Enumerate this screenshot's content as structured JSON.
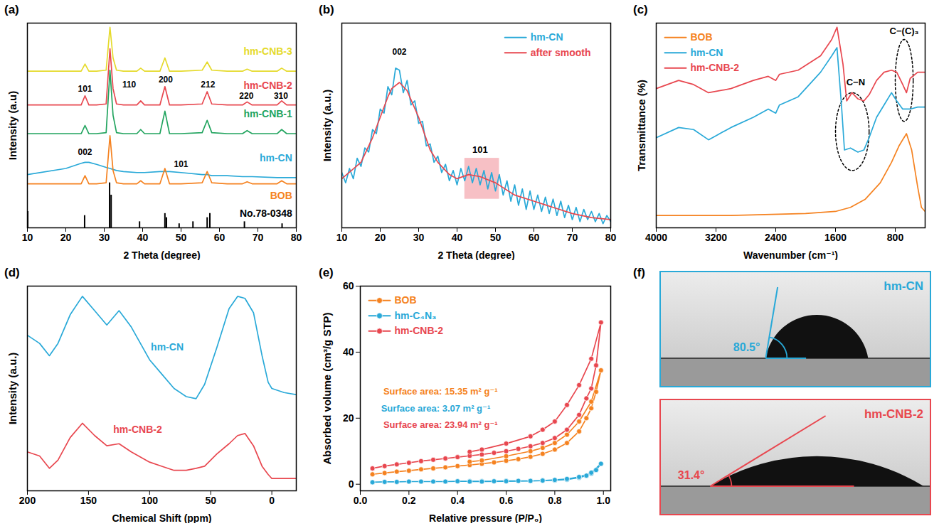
{
  "chart_data": [
    {
      "panel": "(a)",
      "type": "line",
      "x_label": "2 Theta (degree)",
      "y_label": "Intensity (a.u)",
      "xlim": [
        10,
        80
      ],
      "xticks": [
        10,
        20,
        30,
        40,
        50,
        60,
        70,
        80
      ],
      "ylim": [
        0,
        100
      ],
      "tick_labels": "x",
      "legend": "inline",
      "x": [
        10,
        20,
        24,
        25,
        26,
        28,
        30.5,
        31.5,
        32.3,
        33.2,
        35,
        38.5,
        39.5,
        40.5,
        44.5,
        45.8,
        47,
        50,
        55.5,
        56.8,
        58,
        62,
        66,
        67.2,
        68.5,
        75,
        76.2,
        77.5,
        80
      ],
      "series": [
        {
          "name": "hm-CNB-3",
          "color": "#e5da2a",
          "values": [
            76.5,
            76.5,
            76.5,
            80,
            76.5,
            76.5,
            77,
            98,
            83,
            77,
            76.5,
            76.5,
            78,
            76.5,
            76.5,
            83,
            76.5,
            76.5,
            77,
            81,
            77,
            76.5,
            76.5,
            77.5,
            76.5,
            76.5,
            78,
            76.5,
            76.5
          ]
        },
        {
          "name": "hm-CNB-2",
          "color": "#e8474f",
          "values": [
            60,
            60,
            60,
            64.5,
            60,
            60,
            60.5,
            87.5,
            68,
            60.5,
            60,
            60,
            62,
            60,
            60,
            69,
            60,
            60,
            60.5,
            66.5,
            60.5,
            60,
            60,
            61.5,
            60,
            60,
            62,
            60,
            60
          ]
        },
        {
          "name": "hm-CNB-1",
          "color": "#22a45f",
          "values": [
            46,
            46,
            46,
            50,
            46,
            46,
            46.5,
            77,
            55,
            46.5,
            46,
            46,
            48,
            46,
            46,
            57,
            46,
            46,
            46.5,
            52.5,
            46.5,
            46,
            46,
            47.5,
            46,
            46,
            48,
            46,
            46
          ]
        },
        {
          "name": "hm-CN",
          "color": "#29a9d8",
          "values": [
            26,
            29,
            31.5,
            32,
            32,
            31,
            29.5,
            29,
            28.5,
            28,
            27.5,
            27,
            27,
            27,
            27.5,
            27.5,
            27.5,
            27,
            26,
            26,
            25.5,
            25.5,
            25,
            25,
            25,
            24.5,
            24.5,
            24.5,
            24.5
          ]
        },
        {
          "name": "BOB",
          "color": "#f58220",
          "values": [
            21.5,
            21.5,
            21.5,
            25.5,
            21.5,
            21.5,
            22,
            45,
            28,
            22,
            21.5,
            21.5,
            23,
            21.5,
            21.5,
            29,
            21.5,
            21.5,
            22,
            27.5,
            22,
            21.5,
            21.5,
            22.5,
            21.5,
            21.5,
            23,
            21.5,
            21.5
          ]
        },
        {
          "name": "No.78-0348",
          "type": "stick",
          "color": "#000000",
          "x": [
            10.1,
            24.9,
            31.4,
            31.8,
            39.2,
            45.8,
            46.2,
            49.5,
            53.1,
            56.8,
            57.5,
            66.5,
            76.3
          ],
          "values": [
            8,
            6,
            22,
            16,
            3,
            7,
            5,
            2,
            3,
            5,
            7,
            3,
            2
          ]
        }
      ],
      "annotations": [
        {
          "text": "101",
          "x": 25,
          "y": 68
        },
        {
          "text": "110",
          "x": 36.5,
          "y": 70
        },
        {
          "text": "200",
          "x": 46,
          "y": 72.5
        },
        {
          "text": "212",
          "x": 57,
          "y": 70
        },
        {
          "text": "220",
          "x": 67,
          "y": 64.5
        },
        {
          "text": "310",
          "x": 76,
          "y": 64.5
        },
        {
          "text": "002",
          "x": 25,
          "y": 37
        },
        {
          "text": "101",
          "x": 50,
          "y": 31
        }
      ]
    },
    {
      "panel": "(b)",
      "type": "line",
      "x_label": "2 Theta (degree)",
      "y_label": "Intensity (a.u.)",
      "xlim": [
        10,
        80
      ],
      "xticks": [
        10,
        20,
        30,
        40,
        50,
        60,
        70,
        80
      ],
      "ylim": [
        0,
        100
      ],
      "tick_labels": "x",
      "legend": "top-right",
      "series": [
        {
          "name": "hm-CN",
          "color": "#29a9d8",
          "x": [
            10,
            11,
            12,
            13,
            14,
            15,
            16,
            17,
            18,
            19,
            20,
            21,
            22,
            23,
            24,
            25,
            26,
            27,
            28,
            29,
            30,
            31,
            32,
            33,
            34,
            35,
            36,
            37,
            38,
            39,
            40,
            41,
            42,
            43,
            44,
            45,
            46,
            47,
            48,
            49,
            50,
            51,
            52,
            53,
            54,
            55,
            56,
            57,
            58,
            59,
            60,
            61,
            62,
            63,
            64,
            65,
            66,
            67,
            68,
            69,
            70,
            71,
            72,
            73,
            74,
            75,
            76,
            77,
            78,
            79,
            80
          ],
          "values": [
            27,
            22,
            29,
            24,
            34,
            30,
            39,
            37,
            48,
            46,
            58,
            56,
            69,
            65,
            78,
            77,
            66,
            72,
            60,
            62,
            51,
            52,
            40,
            41,
            32,
            35,
            27,
            31,
            23,
            28,
            21,
            29,
            23,
            30,
            22,
            29,
            21,
            28,
            19,
            27,
            18,
            26,
            16,
            23,
            13,
            21,
            11,
            19,
            9,
            18,
            9,
            16,
            8,
            15,
            7,
            14,
            6,
            13,
            5,
            11,
            4,
            10,
            3,
            9,
            4,
            8,
            3,
            7,
            2,
            6,
            3
          ]
        },
        {
          "name": "after smooth",
          "color": "#e8474f",
          "x": [
            10,
            15,
            18,
            20,
            22,
            23,
            25,
            27,
            30,
            33,
            35,
            38,
            40,
            43,
            46,
            50,
            55,
            60,
            65,
            70,
            75,
            80
          ],
          "values": [
            24,
            32,
            44,
            54,
            64,
            68,
            71,
            67,
            54,
            38,
            32,
            26,
            24,
            26,
            25,
            22,
            16,
            13,
            10,
            7,
            5,
            4
          ]
        }
      ],
      "annotations": [
        {
          "text": "002",
          "x": 25,
          "y": 86
        },
        {
          "text": "101",
          "x": 46,
          "y": 38,
          "shape": "rect",
          "x_range": [
            42,
            51
          ],
          "y_range": [
            14,
            34
          ],
          "color": "#f08c96"
        }
      ]
    },
    {
      "panel": "(c)",
      "type": "line",
      "x_label": "Wavenumber (cm⁻¹)",
      "y_label": "Transmittance (%)",
      "xlim": [
        4000,
        400
      ],
      "xticks": [
        4000,
        3200,
        2400,
        1600,
        800
      ],
      "ylim": [
        0,
        100
      ],
      "tick_labels": "x",
      "legend": "top-left",
      "series": [
        {
          "name": "BOB",
          "color": "#f58220",
          "x": [
            4000,
            3000,
            2000,
            1600,
            1400,
            1200,
            1000,
            850,
            750,
            650,
            580,
            500,
            450,
            400
          ],
          "values": [
            6,
            6,
            7,
            8,
            10,
            14,
            22,
            32,
            40,
            46,
            38,
            20,
            10,
            8
          ]
        },
        {
          "name": "hm-CN",
          "color": "#29a9d8",
          "x": [
            4000,
            3700,
            3500,
            3300,
            3200,
            3000,
            2700,
            2500,
            2400,
            2350,
            2100,
            1800,
            1650,
            1580,
            1520,
            1480,
            1400,
            1300,
            1220,
            1150,
            1050,
            950,
            850,
            780,
            700,
            600,
            500,
            400
          ],
          "values": [
            44,
            49,
            48,
            43,
            45,
            49,
            54,
            58,
            56,
            60,
            64,
            76,
            84,
            88,
            60,
            38,
            39,
            37,
            38,
            44,
            54,
            60,
            66,
            62,
            58,
            58,
            59,
            59
          ]
        },
        {
          "name": "hm-CNB-2",
          "color": "#e8474f",
          "x": [
            4000,
            3700,
            3500,
            3300,
            3000,
            2700,
            2500,
            2400,
            2350,
            2100,
            1800,
            1650,
            1580,
            1500,
            1450,
            1380,
            1300,
            1220,
            1150,
            1050,
            950,
            850,
            780,
            700,
            650,
            600,
            500,
            400
          ],
          "values": [
            68,
            72,
            70,
            66,
            68,
            72,
            74,
            72,
            75,
            77,
            84,
            92,
            98,
            80,
            62,
            66,
            63,
            62,
            65,
            72,
            76,
            77,
            76,
            70,
            66,
            73,
            76,
            76
          ]
        }
      ],
      "annotations": [
        {
          "text": "C−N",
          "x": 1330,
          "y": 71,
          "shape": "ellipse",
          "x_range": [
            1600,
            1150
          ],
          "y_range": [
            28,
            66
          ],
          "color": "#000000"
        },
        {
          "text": "C−(C)₃",
          "x": 680,
          "y": 96,
          "shape": "ellipse",
          "x_range": [
            800,
            560
          ],
          "y_range": [
            52,
            92
          ],
          "color": "#000000"
        }
      ]
    },
    {
      "panel": "(d)",
      "type": "line",
      "x_label": "Chemical Shift (ppm)",
      "y_label": "Intensity (a.u.)",
      "xlim": [
        200,
        -20
      ],
      "xticks": [
        200,
        150,
        100,
        50,
        0
      ],
      "ylim": [
        0,
        100
      ],
      "tick_labels": "x",
      "legend": "inline",
      "x": [
        200,
        190,
        182,
        175,
        165,
        155,
        145,
        135,
        125,
        115,
        100,
        90,
        80,
        70,
        62,
        55,
        45,
        35,
        28,
        22,
        15,
        8,
        3,
        0,
        -10,
        -20
      ],
      "series": [
        {
          "name": "hm-CN",
          "color": "#29a9d8",
          "values": [
            76,
            72,
            66,
            72,
            86,
            95,
            88,
            81,
            88,
            80,
            64,
            57,
            50,
            46,
            45,
            52,
            70,
            89,
            95,
            94,
            87,
            66,
            53,
            50,
            48,
            47
          ]
        },
        {
          "name": "hm-CNB-2",
          "color": "#e8474f",
          "values": [
            19,
            17,
            11,
            15,
            26,
            33,
            27,
            22,
            23,
            19,
            14,
            12,
            10,
            10,
            11,
            12,
            18,
            23,
            27,
            28,
            22,
            12,
            8,
            6,
            6,
            6
          ]
        }
      ]
    },
    {
      "panel": "(e)",
      "type": "line",
      "marker": "circle",
      "x_label": "Relative pressure (P/P₀)",
      "y_label": "Absorbed volume (cm³/g STP)",
      "xlim": [
        0,
        1.03
      ],
      "xticks": [
        {
          "value": 0,
          "label": "0.0"
        },
        0.2,
        0.4,
        0.6,
        0.8,
        {
          "value": 1,
          "label": "1.0"
        }
      ],
      "ylim": [
        -2,
        60
      ],
      "yticks": [
        0,
        20,
        40,
        60
      ],
      "legend": "top-left",
      "x": [
        0.05,
        0.1,
        0.15,
        0.2,
        0.25,
        0.3,
        0.35,
        0.4,
        0.45,
        0.5,
        0.55,
        0.6,
        0.65,
        0.7,
        0.75,
        0.8,
        0.85,
        0.9,
        0.93,
        0.95,
        0.97,
        0.99,
        0.95,
        0.9,
        0.85,
        0.8,
        0.75,
        0.7,
        0.6,
        0.5,
        0.45
      ],
      "series": [
        {
          "name": "BOB",
          "color": "#f58220",
          "values": [
            3.0,
            3.4,
            3.8,
            4.1,
            4.5,
            4.8,
            5.1,
            5.5,
            5.8,
            6.2,
            6.6,
            7.1,
            7.6,
            8.3,
            9.2,
            10.5,
            12.5,
            16,
            20,
            23,
            28,
            34.5,
            25,
            19,
            15,
            12.5,
            11,
            10,
            8.5,
            7.2,
            6.8
          ]
        },
        {
          "name": "hm-C₄N₃",
          "color": "#29a9d8",
          "values": [
            0.6,
            0.7,
            0.7,
            0.8,
            0.8,
            0.8,
            0.8,
            0.9,
            0.9,
            0.9,
            0.9,
            1.0,
            1.0,
            1.0,
            1.1,
            1.2,
            1.4,
            2.0,
            2.6,
            3.2,
            4.3,
            6.2,
            3.5,
            2.2,
            1.6,
            1.3,
            1.1,
            1.0,
            0.9,
            0.8,
            0.8
          ]
        },
        {
          "name": "hm-CNB-2",
          "color": "#e8474f",
          "values": [
            4.8,
            5.5,
            6.0,
            6.5,
            7.0,
            7.4,
            7.8,
            8.2,
            8.6,
            9.0,
            9.5,
            10.0,
            10.7,
            11.5,
            12.5,
            14.0,
            16.5,
            21,
            26,
            29,
            36,
            49,
            38,
            30,
            24,
            19,
            16.5,
            14.5,
            12.3,
            10.5,
            9.8
          ]
        }
      ],
      "annotations": [
        {
          "text": "Surface area: 15.35 m² g⁻¹",
          "x": 0.33,
          "y": 28,
          "color": "#f58220"
        },
        {
          "text": "Surface area: 3.07 m² g⁻¹",
          "x": 0.31,
          "y": 23,
          "color": "#29a9d8"
        },
        {
          "text": "Surface area: 23.94 m² g⁻¹",
          "x": 0.33,
          "y": 18,
          "color": "#e8474f"
        }
      ]
    }
  ],
  "photos": {
    "panel": "(f)",
    "items": [
      {
        "label": "hm-CN",
        "angle": 80.5,
        "angle_label": "80.5°",
        "color": "#29a9d8"
      },
      {
        "label": "hm-CNB-2",
        "angle": 31.4,
        "angle_label": "31.4°",
        "color": "#e8474f"
      }
    ]
  }
}
